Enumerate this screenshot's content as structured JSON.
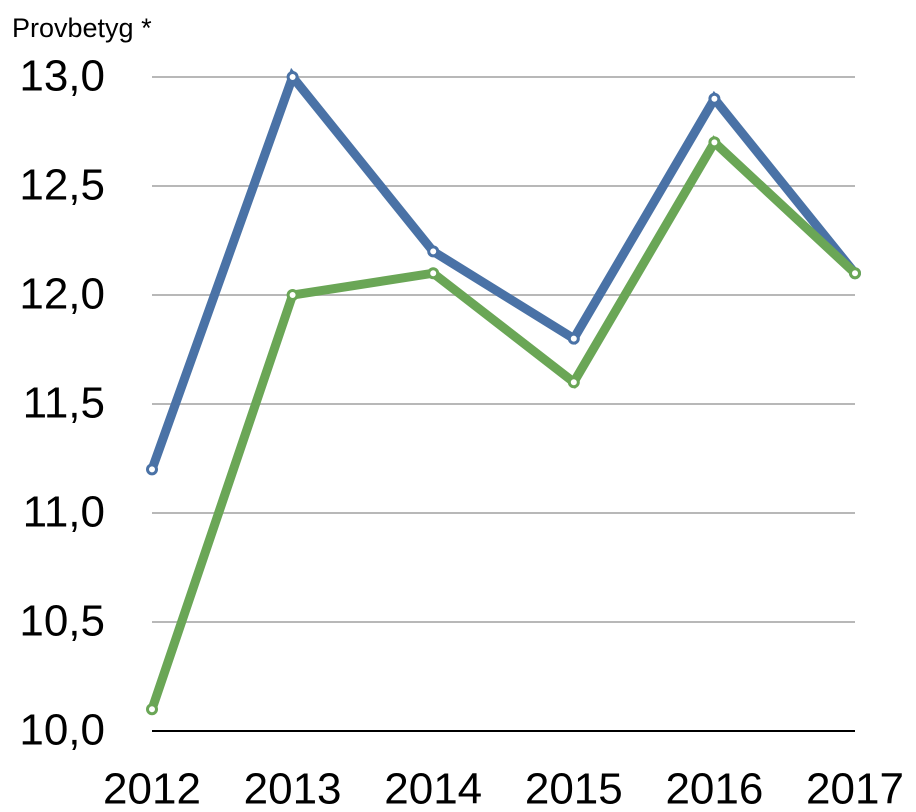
{
  "chart_data": {
    "type": "line",
    "title": "Provbetyg *",
    "categories": [
      "2012",
      "2013",
      "2014",
      "2015",
      "2016",
      "2017"
    ],
    "series": [
      {
        "color": "#4a72a6",
        "values": [
          11.2,
          13.0,
          12.2,
          11.8,
          12.9,
          12.1
        ]
      },
      {
        "color": "#6aa656",
        "values": [
          10.1,
          12.0,
          12.1,
          11.6,
          12.7,
          12.1
        ]
      }
    ],
    "ylim": [
      10,
      13
    ],
    "yticks": [
      {
        "value": 10,
        "label": "10,0"
      },
      {
        "value": 10.5,
        "label": "10,5"
      },
      {
        "value": 11,
        "label": "11,0"
      },
      {
        "value": 11.5,
        "label": "11,5"
      },
      {
        "value": 12,
        "label": "12,0"
      },
      {
        "value": 12.5,
        "label": "12,5"
      },
      {
        "value": 13,
        "label": "13,0"
      }
    ],
    "grid": true
  }
}
